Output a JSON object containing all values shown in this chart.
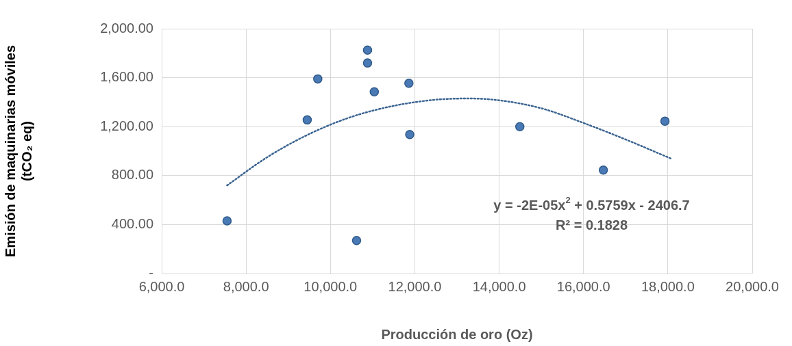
{
  "chart_data": {
    "type": "scatter",
    "xlabel": "Producción de oro (Oz)",
    "ylabel": "Emisión de maquinarias móviles (tCO₂ eq)",
    "x": [
      7550,
      9450,
      9700,
      10620,
      10880,
      10880,
      11040,
      11860,
      11880,
      14490,
      16470,
      17930
    ],
    "values": [
      430,
      1255,
      1590,
      270,
      1825,
      1720,
      1485,
      1555,
      1135,
      1200,
      845,
      1245
    ],
    "color": "#4a7ab5",
    "marker": "circle",
    "series": [
      {
        "name": null,
        "type": "line",
        "color": "#3b6491",
        "line_style": "dotted",
        "marker": "none",
        "x": [
          7550,
          8500,
          9500,
          10500,
          11500,
          12500,
          13300,
          14000,
          15000,
          16000,
          17000,
          18100
        ],
        "values": [
          720,
          950,
          1140,
          1280,
          1370,
          1420,
          1430,
          1415,
          1350,
          1230,
          1095,
          935
        ]
      }
    ],
    "xlim": [
      6000,
      20000
    ],
    "xticks": [
      {
        "value": 6000,
        "label": "6,000.0"
      },
      {
        "value": 8000,
        "label": "8,000.0"
      },
      {
        "value": 10000,
        "label": "10,000.0"
      },
      {
        "value": 12000,
        "label": "12,000.0"
      },
      {
        "value": 14000,
        "label": "14,000.0"
      },
      {
        "value": 16000,
        "label": "16,000.0"
      },
      {
        "value": 18000,
        "label": "18,000.0"
      },
      {
        "value": 20000,
        "label": "20,000.0"
      }
    ],
    "ylim": [
      0,
      2000
    ],
    "yticks": [
      {
        "value": 0,
        "label": "-"
      },
      {
        "value": 400,
        "label": "400.00"
      },
      {
        "value": 800,
        "label": "800.00"
      },
      {
        "value": 1200,
        "label": "1,200.00"
      },
      {
        "value": 1600,
        "label": "1,600.00"
      },
      {
        "value": 2000,
        "label": "2,000.00"
      }
    ],
    "grid": true,
    "legend": false,
    "annotations": [
      "y = -2E-05x$^{2}$ + 0.5759x - 2406.7",
      "R² = 0.1828"
    ]
  }
}
